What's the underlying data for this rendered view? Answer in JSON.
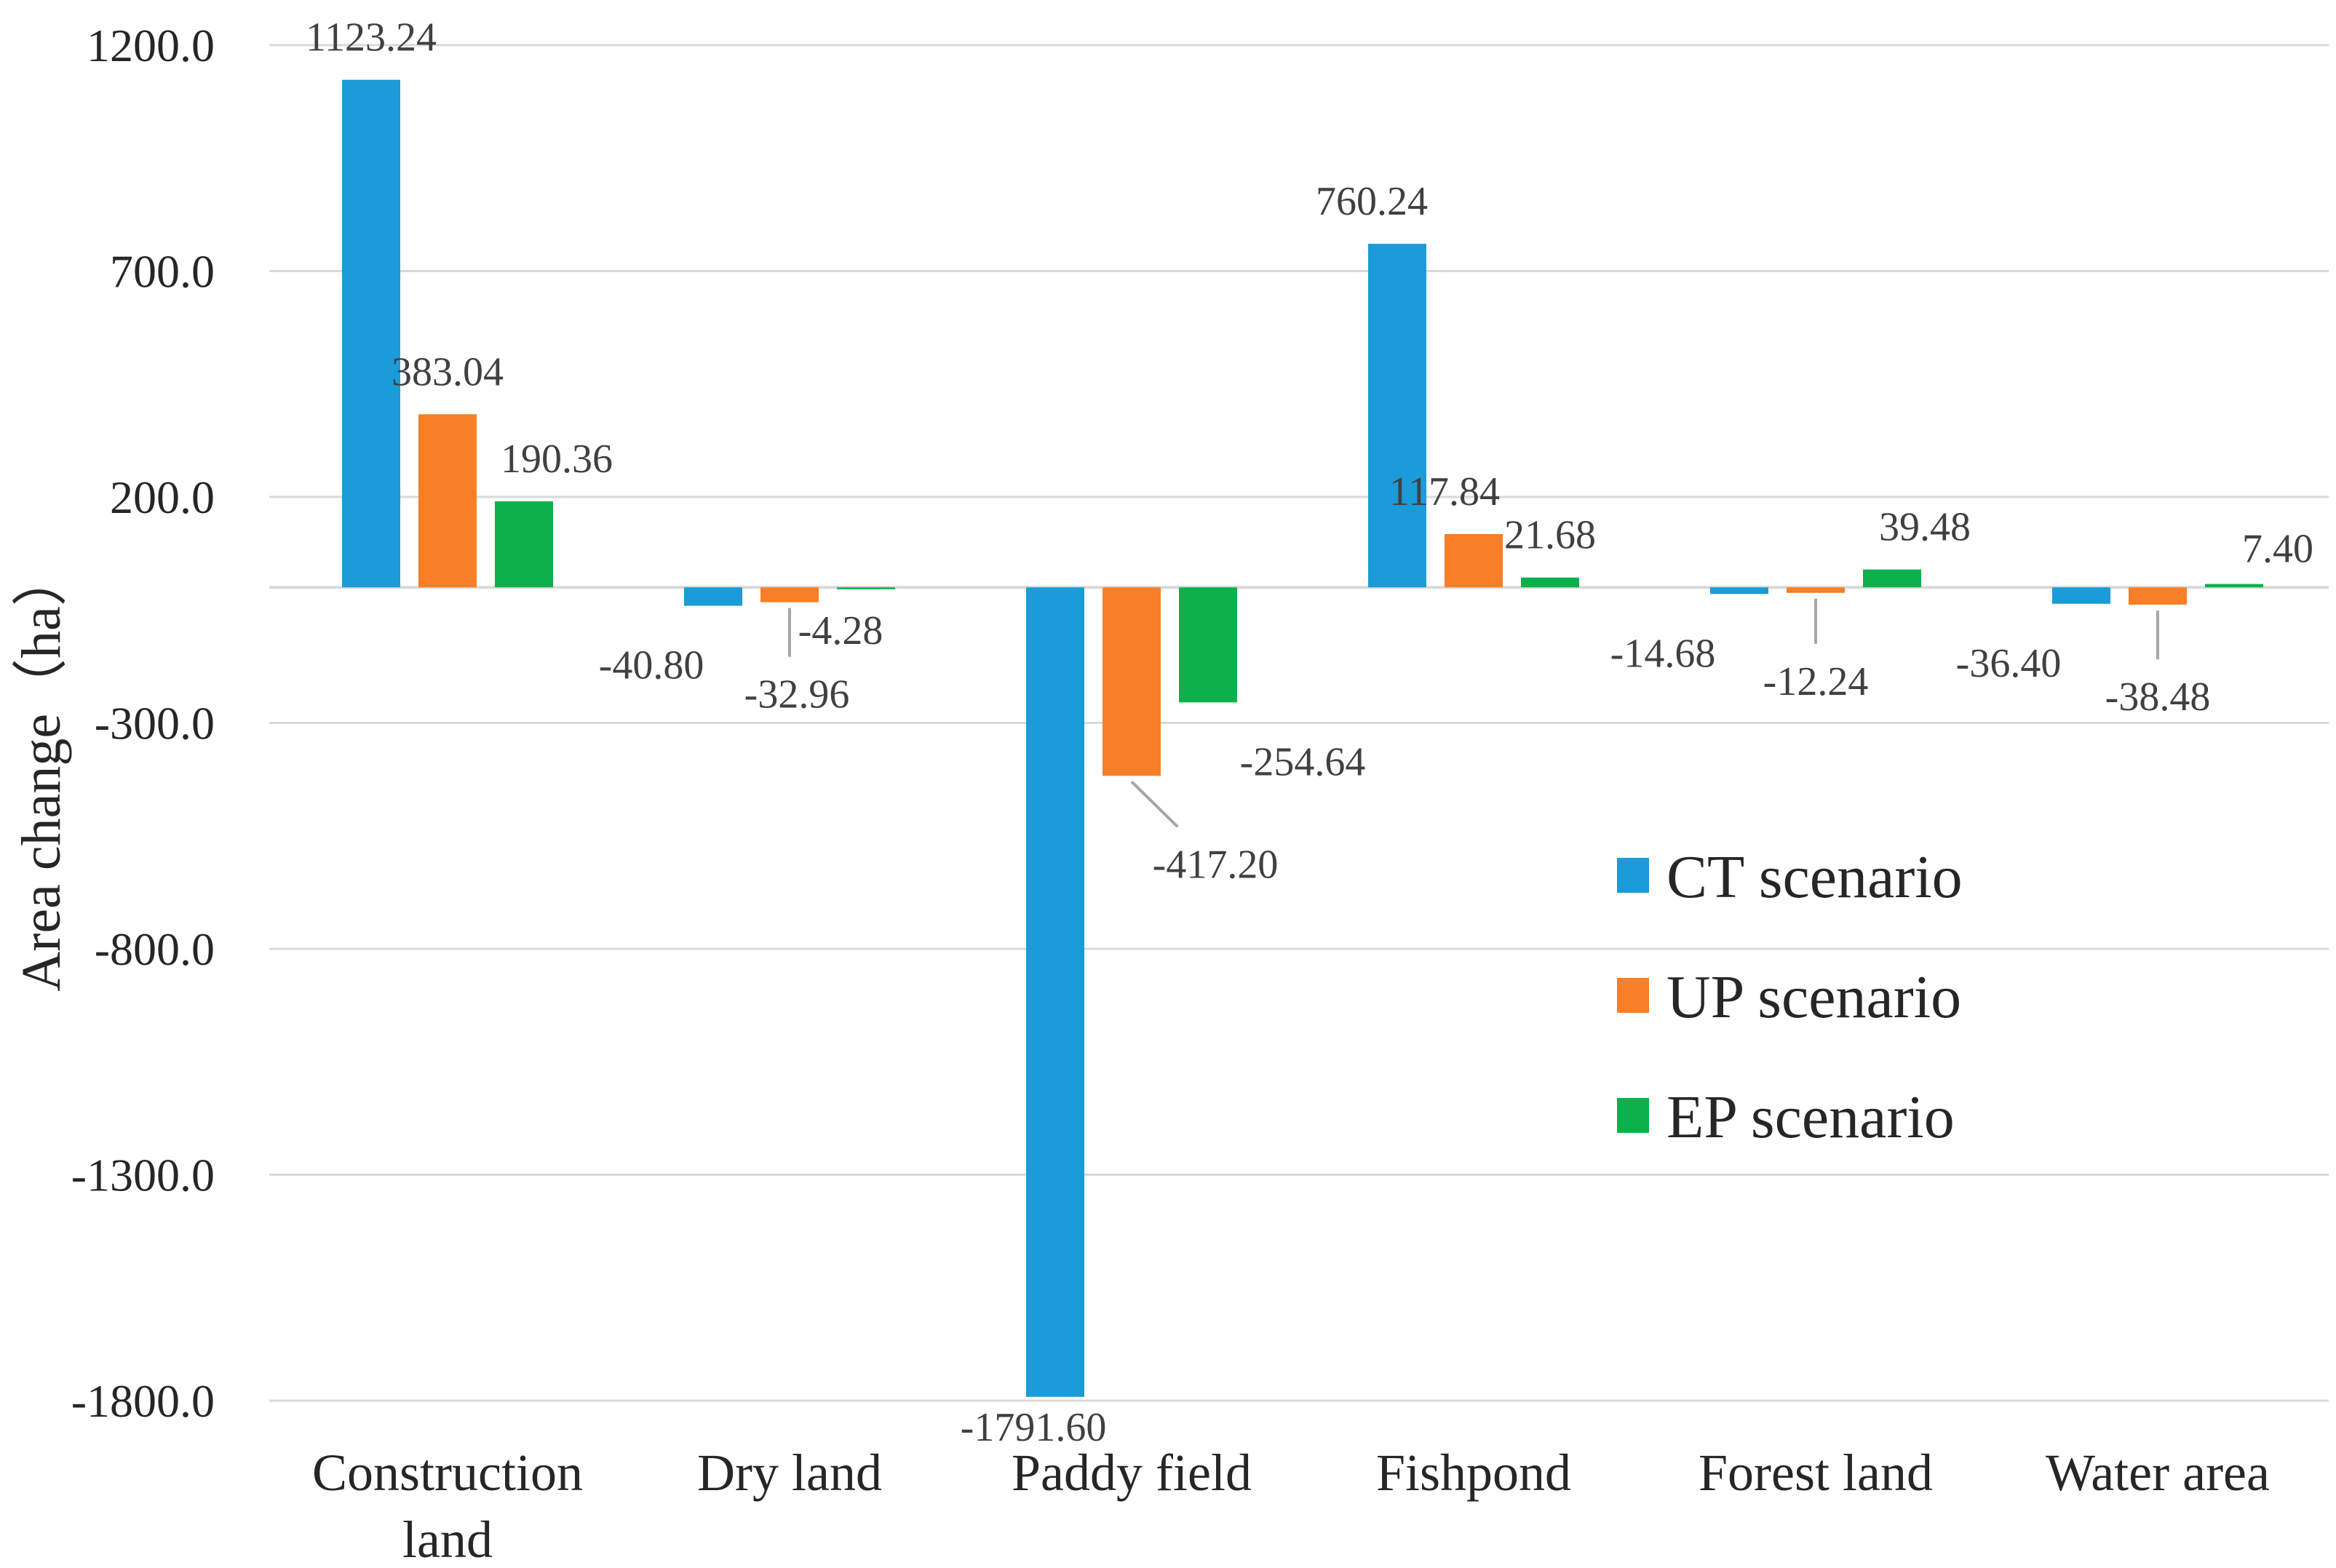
{
  "chart_data": {
    "type": "bar",
    "title": "",
    "ylabel": "Area change（ha）",
    "xlabel": "",
    "ylim": [
      -1800,
      1200
    ],
    "yticks": [
      1200,
      700,
      200,
      -300,
      -800,
      -1300,
      -1800
    ],
    "ytick_labels": [
      "1200.0",
      "700.0",
      "200.0",
      "-300.0",
      "-800.0",
      "-1300.0",
      "-1800.0"
    ],
    "categories": [
      [
        "Construction",
        "land"
      ],
      [
        "Dry land"
      ],
      [
        "Paddy field"
      ],
      [
        "Fishpond"
      ],
      [
        "Forest land"
      ],
      [
        "Water area"
      ]
    ],
    "series": [
      {
        "name": "CT scenario",
        "color": "#1b9bd7",
        "values": [
          1123.24,
          -40.8,
          -1791.6,
          760.24,
          -14.68,
          -36.4
        ],
        "labels": [
          "1123.24",
          "-40.80",
          "-1791.60",
          "760.24",
          "-14.68",
          "-36.40"
        ]
      },
      {
        "name": "UP scenario",
        "color": "#f77f27",
        "values": [
          383.04,
          -32.96,
          -417.2,
          117.84,
          -12.24,
          -38.48
        ],
        "labels": [
          "383.04",
          "-32.96",
          "-417.20",
          "117.84",
          "-12.24",
          "-38.48"
        ]
      },
      {
        "name": "EP scenario",
        "color": "#0db14b",
        "values": [
          190.36,
          -4.28,
          -254.64,
          21.68,
          39.48,
          7.4
        ],
        "labels": [
          "190.36",
          "-4.28",
          "-254.64",
          "21.68",
          "39.48",
          "7.40"
        ]
      }
    ],
    "legend": {
      "position": "right-middle",
      "entries": [
        "CT scenario",
        "UP scenario",
        "EP scenario"
      ]
    },
    "grid": true
  }
}
